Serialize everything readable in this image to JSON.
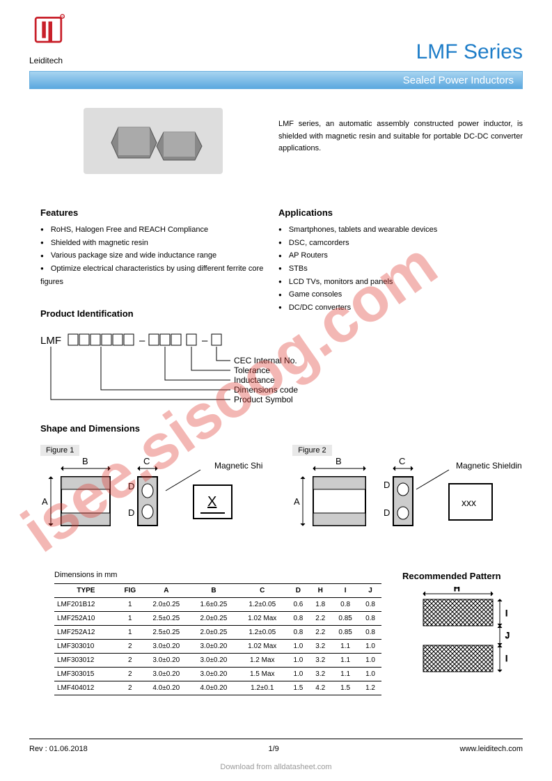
{
  "brand": "Leiditech",
  "title": "LMF Series",
  "subtitle": "Sealed Power Inductors",
  "intro": "LMF series, an automatic assembly constructed power inductor, is shielded with magnetic resin and suitable for portable DC-DC converter applications.",
  "features": {
    "heading": "Features",
    "items": [
      "RoHS, Halogen Free and REACH Compliance",
      "Shielded with magnetic resin",
      "Various package size and wide inductance range",
      "Optimize electrical characteristics by using different ferrite core figures"
    ]
  },
  "applications": {
    "heading": "Applications",
    "items": [
      "Smartphones, tablets and wearable devices",
      "DSC, camcorders",
      "AP Routers",
      "STBs",
      "LCD TVs, monitors and panels",
      "Game consoles",
      "DC/DC converters"
    ]
  },
  "prod_id": {
    "heading": "Product Identification",
    "prefix": "LMF",
    "labels": [
      "CEC Internal No.",
      "Tolerance",
      "Inductance",
      "Dimensions code",
      "Product Symbol"
    ]
  },
  "shape": {
    "heading": "Shape and Dimensions",
    "fig1": "Figure 1",
    "fig2": "Figure 2",
    "shield_label": "Magnetic Shielding"
  },
  "dims": {
    "caption": "Dimensions in mm",
    "columns": [
      "TYPE",
      "FIG",
      "A",
      "B",
      "C",
      "D",
      "H",
      "I",
      "J"
    ],
    "rows": [
      [
        "LMF201B12",
        "1",
        "2.0±0.25",
        "1.6±0.25",
        "1.2±0.05",
        "0.6",
        "1.8",
        "0.8",
        "0.8"
      ],
      [
        "LMF252A10",
        "1",
        "2.5±0.25",
        "2.0±0.25",
        "1.02 Max",
        "0.8",
        "2.2",
        "0.85",
        "0.8"
      ],
      [
        "LMF252A12",
        "1",
        "2.5±0.25",
        "2.0±0.25",
        "1.2±0.05",
        "0.8",
        "2.2",
        "0.85",
        "0.8"
      ],
      [
        "LMF303010",
        "2",
        "3.0±0.20",
        "3.0±0.20",
        "1.02 Max",
        "1.0",
        "3.2",
        "1.1",
        "1.0"
      ],
      [
        "LMF303012",
        "2",
        "3.0±0.20",
        "3.0±0.20",
        "1.2 Max",
        "1.0",
        "3.2",
        "1.1",
        "1.0"
      ],
      [
        "LMF303015",
        "2",
        "3.0±0.20",
        "3.0±0.20",
        "1.5 Max",
        "1.0",
        "3.2",
        "1.1",
        "1.0"
      ],
      [
        "LMF404012",
        "2",
        "4.0±0.20",
        "4.0±0.20",
        "1.2±0.1",
        "1.5",
        "4.2",
        "1.5",
        "1.2"
      ]
    ]
  },
  "rec_pattern": {
    "heading": "Recommended Pattern"
  },
  "footer": {
    "rev": "Rev : 01.06.2018",
    "page": "1/9",
    "url": "www.leiditech.com",
    "download": "Download from alldatasheet.com"
  },
  "watermark": "isee.sisoog.com",
  "colors": {
    "title": "#1e7dc8",
    "bar_top": "#a8d4f0",
    "bar_bottom": "#5ba8df",
    "logo": "#c8202a",
    "watermark": "rgba(220,50,40,0.35)"
  }
}
